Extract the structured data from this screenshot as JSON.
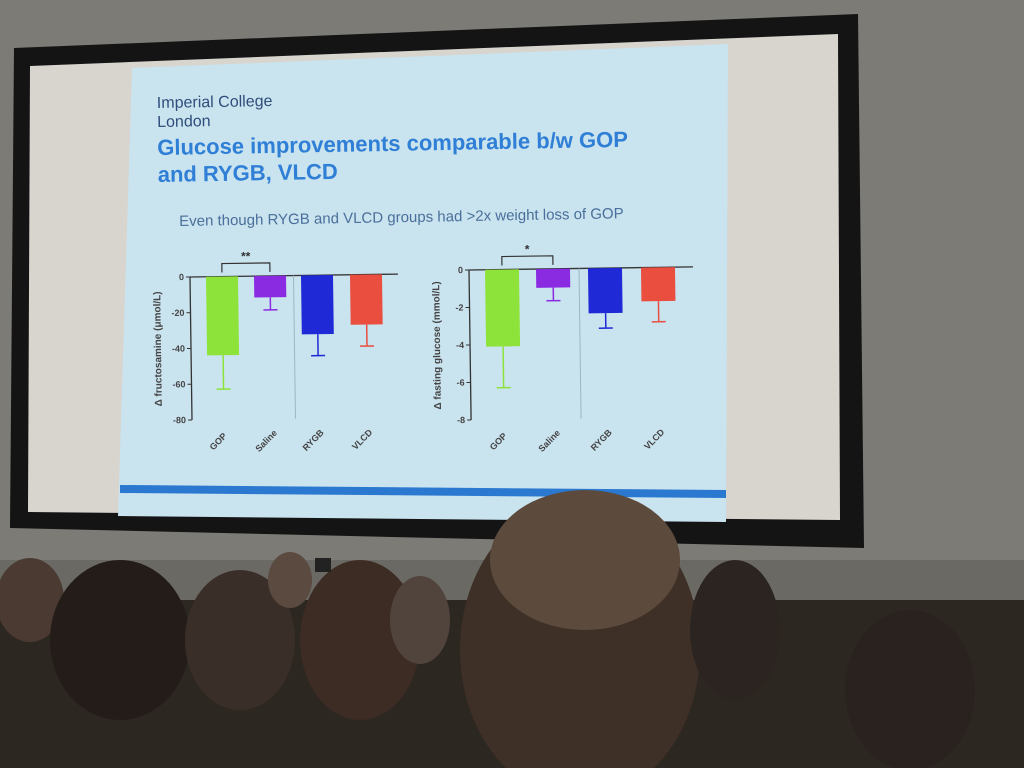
{
  "slide": {
    "logo_line1": "Imperial College",
    "logo_line2": "London",
    "title_line1": "Glucose improvements comparable b/w GOP",
    "title_line2": "and RYGB, VLCD",
    "subtitle": "Even though RYGB and VLCD groups had >2x weight loss of GOP"
  },
  "colors": {
    "slide_bg": "#c9e3ef",
    "title": "#2f7fd6",
    "footer_bar": "#2a78d0",
    "gop": "#8ee33a",
    "saline": "#8a2be2",
    "rygb": "#1f2ad6",
    "vlcd": "#e94e3f"
  },
  "chart_data": [
    {
      "type": "bar",
      "title": "",
      "ylabel": "Δ fructosamine (μmol/L)",
      "categories": [
        "GOP",
        "Saline",
        "RYGB",
        "VLCD"
      ],
      "values": [
        -44,
        -12,
        -33,
        -28
      ],
      "errors": [
        19,
        7,
        12,
        12
      ],
      "ylim": [
        -80,
        0
      ],
      "yticks": [
        "0",
        "-20",
        "-40",
        "-60",
        "-80"
      ],
      "ytick_values": [
        0,
        -20,
        -40,
        -60,
        -80
      ],
      "significance": {
        "between": [
          "GOP",
          "Saline"
        ],
        "label": "**"
      }
    },
    {
      "type": "bar",
      "title": "",
      "ylabel": "Δ fasting glucose (mmol/L)",
      "categories": [
        "GOP",
        "Saline",
        "RYGB",
        "VLCD"
      ],
      "values": [
        -4.1,
        -1.0,
        -2.4,
        -1.8
      ],
      "errors": [
        2.2,
        0.7,
        0.8,
        1.1
      ],
      "ylim": [
        -8,
        0
      ],
      "yticks": [
        "0",
        "-2",
        "-4",
        "-6",
        "-8"
      ],
      "ytick_values": [
        0,
        -2,
        -4,
        -6,
        -8
      ],
      "significance": {
        "between": [
          "GOP",
          "Saline"
        ],
        "label": "*"
      }
    }
  ]
}
